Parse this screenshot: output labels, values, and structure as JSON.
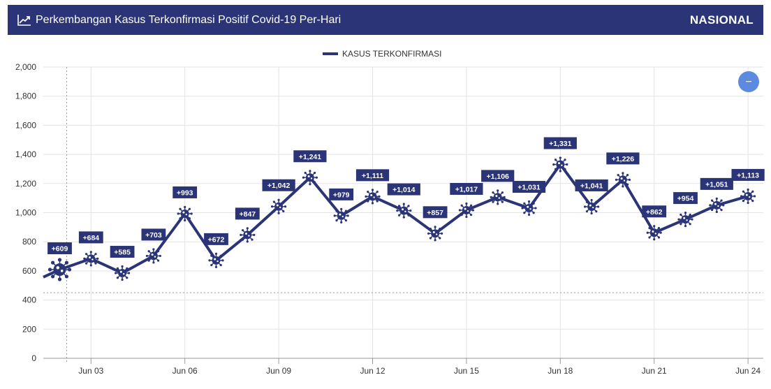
{
  "header": {
    "title": "Perkembangan Kasus Terkonfirmasi Positif Covid-19 Per-Hari",
    "badge": "NASIONAL",
    "icon": "line-chart-icon"
  },
  "colors": {
    "primary": "#2a3476",
    "zoom_button": "#5b8ae0",
    "grid": "#e3e3e3"
  },
  "chart_data": {
    "type": "line",
    "legend": {
      "label": "KASUS TERKONFIRMASI",
      "placement": "top-center"
    },
    "ylim": [
      0,
      2000
    ],
    "yticks": [
      "0",
      "200",
      "400",
      "600",
      "800",
      "1,000",
      "1,200",
      "1,400",
      "1,600",
      "1,800",
      "2,000"
    ],
    "xticks": [
      "Jun 03",
      "Jun 06",
      "Jun 09",
      "Jun 12",
      "Jun 15",
      "Jun 18",
      "Jun 21",
      "Jun 24"
    ],
    "xtick_dates": [
      "2020-06-03",
      "2020-06-06",
      "2020-06-09",
      "2020-06-12",
      "2020-06-15",
      "2020-06-18",
      "2020-06-21",
      "2020-06-24"
    ],
    "x": [
      "2020-06-02",
      "2020-06-03",
      "2020-06-04",
      "2020-06-05",
      "2020-06-06",
      "2020-06-07",
      "2020-06-08",
      "2020-06-09",
      "2020-06-10",
      "2020-06-11",
      "2020-06-12",
      "2020-06-13",
      "2020-06-14",
      "2020-06-15",
      "2020-06-16",
      "2020-06-17",
      "2020-06-18",
      "2020-06-19",
      "2020-06-20",
      "2020-06-21",
      "2020-06-22",
      "2020-06-23",
      "2020-06-24"
    ],
    "series": [
      {
        "name": "KASUS TERKONFIRMASI",
        "values": [
          609,
          684,
          585,
          703,
          993,
          672,
          847,
          1042,
          1241,
          979,
          1111,
          1014,
          857,
          1017,
          1106,
          1031,
          1331,
          1041,
          1226,
          862,
          954,
          1051,
          1113
        ],
        "labels": [
          "+609",
          "+684",
          "+585",
          "+703",
          "+993",
          "+672",
          "+847",
          "+1,042",
          "+1,241",
          "+979",
          "+1,111",
          "+1,014",
          "+857",
          "+1,017",
          "+1,106",
          "+1,031",
          "+1,331",
          "+1,041",
          "+1,226",
          "+862",
          "+954",
          "+1,051",
          "+1,113"
        ]
      }
    ],
    "prior_value": 557,
    "crosshair": {
      "x": "2020-06-02",
      "y": 450
    },
    "grid": true,
    "zoom_button_label": "−"
  }
}
